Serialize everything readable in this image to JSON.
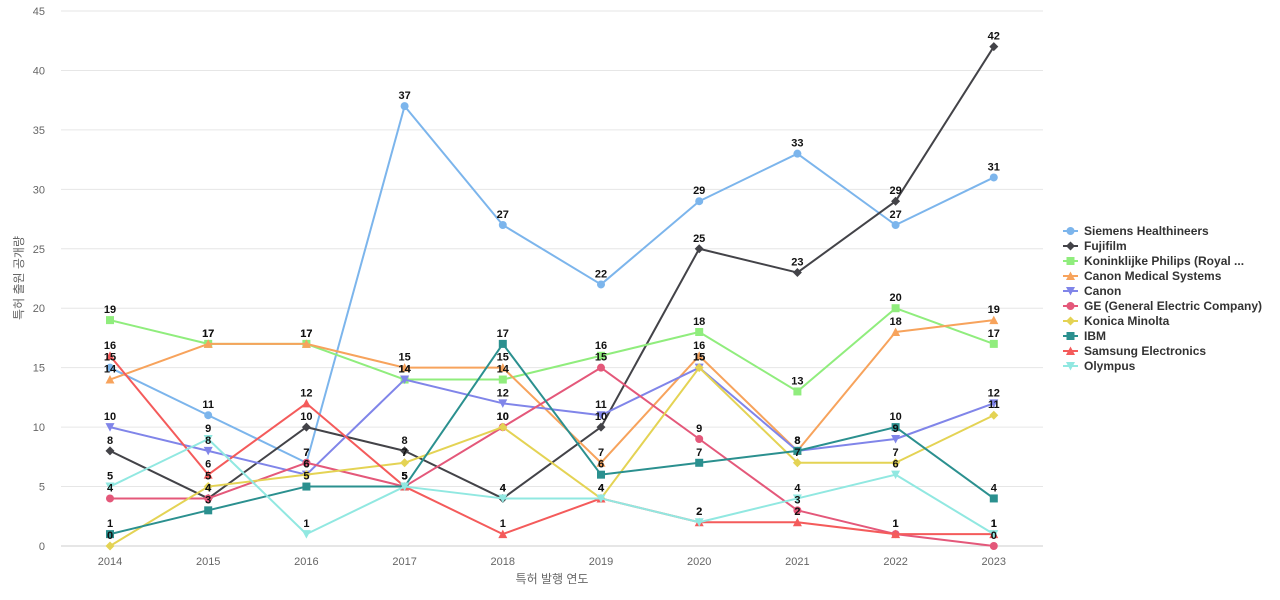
{
  "chart_data": {
    "type": "line",
    "title": "",
    "xlabel": "특허 발행 연도",
    "ylabel": "특허 출원 공개량",
    "ylim": [
      0,
      45
    ],
    "yticks": [
      0,
      5,
      10,
      15,
      20,
      25,
      30,
      35,
      40,
      45
    ],
    "grid": true,
    "legend_position": "right",
    "x": [
      "2014",
      "2015",
      "2016",
      "2017",
      "2018",
      "2019",
      "2020",
      "2021",
      "2022",
      "2023"
    ],
    "series": [
      {
        "name": "Siemens Healthineers",
        "color": "#7cb5ec",
        "marker": "circle",
        "values": [
          15,
          11,
          7,
          37,
          27,
          22,
          29,
          33,
          27,
          31
        ]
      },
      {
        "name": "Fujifilm",
        "color": "#434348",
        "marker": "diamond",
        "values": [
          8,
          4,
          10,
          8,
          4,
          10,
          25,
          23,
          29,
          42
        ]
      },
      {
        "name": "Koninklijke Philips (Royal ...",
        "color": "#90ed7d",
        "marker": "square",
        "values": [
          19,
          17,
          17,
          14,
          14,
          16,
          18,
          13,
          20,
          17
        ]
      },
      {
        "name": "Canon Medical Systems",
        "color": "#f7a35c",
        "marker": "triangle",
        "values": [
          14,
          17,
          17,
          15,
          15,
          7,
          16,
          8,
          18,
          19
        ]
      },
      {
        "name": "Canon",
        "color": "#8085e9",
        "marker": "triangle-down",
        "values": [
          10,
          8,
          6,
          14,
          12,
          11,
          15,
          8,
          9,
          12
        ]
      },
      {
        "name": "GE (General Electric Company)",
        "color": "#e4587a",
        "marker": "circle",
        "values": [
          4,
          4,
          7,
          5,
          10,
          15,
          9,
          3,
          1,
          0
        ]
      },
      {
        "name": "Konica Minolta",
        "color": "#e4d354",
        "marker": "diamond",
        "values": [
          0,
          5,
          6,
          7,
          10,
          4,
          15,
          7,
          7,
          11
        ]
      },
      {
        "name": "IBM",
        "color": "#2b908f",
        "marker": "square",
        "values": [
          1,
          3,
          5,
          5,
          17,
          6,
          7,
          8,
          10,
          4
        ]
      },
      {
        "name": "Samsung Electronics",
        "color": "#f45b5b",
        "marker": "triangle",
        "values": [
          16,
          6,
          12,
          5,
          1,
          4,
          2,
          2,
          1,
          1
        ]
      },
      {
        "name": "Olympus",
        "color": "#91e8e1",
        "marker": "triangle-down",
        "values": [
          5,
          9,
          1,
          5,
          4,
          4,
          2,
          4,
          6,
          1
        ]
      }
    ]
  }
}
